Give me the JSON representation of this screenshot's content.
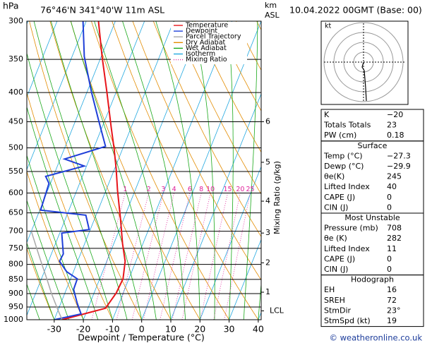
{
  "header": {
    "location": "76°46'N 341°40'W 11m ASL",
    "datetime": "10.04.2022 00GMT (Base: 00)",
    "footer": "© weatheronline.co.uk"
  },
  "chart_data": {
    "type": "skewt",
    "ylabel": "hPa",
    "xlabel": "Dewpoint / Temperature (°C)",
    "y2label": "Mixing Ratio (g/kg)",
    "xlim": [
      -39.4,
      41
    ],
    "xticks": [
      -30,
      -20,
      -10,
      0,
      10,
      20,
      30,
      40
    ],
    "ylim": [
      1000,
      300
    ],
    "yticks": [
      300,
      350,
      400,
      450,
      500,
      550,
      600,
      650,
      700,
      750,
      800,
      850,
      900,
      950,
      1000
    ],
    "log_y": true,
    "height_label": "km",
    "height_label2": "ASL",
    "height_km": [
      1,
      2,
      3,
      4,
      5,
      6
    ],
    "height_pressure": [
      895,
      795,
      705,
      620,
      530,
      450
    ],
    "lcl_label": "LCL",
    "lcl_pressure": 965,
    "series": [
      {
        "name": "Temperature",
        "color": "#e8141a",
        "pressure": [
          1000,
          955,
          898,
          848,
          790,
          736,
          666,
          594,
          545,
          501,
          460,
          399,
          346,
          300
        ],
        "values": [
          -27.3,
          -14,
          -12.4,
          -12,
          -13.7,
          -17,
          -21.1,
          -26,
          -29.4,
          -33,
          -36.9,
          -43.2,
          -49.7,
          -55.8
        ]
      },
      {
        "name": "Dewpoint",
        "color": "#1f3fd8",
        "pressure": [
          1000,
          977,
          937,
          885,
          848,
          824,
          790,
          767,
          705,
          695,
          656,
          643,
          577,
          561,
          538,
          523,
          497,
          447,
          399,
          346,
          300
        ],
        "values": [
          -29.9,
          -21.6,
          -24.3,
          -27.5,
          -27.7,
          -32.3,
          -36.2,
          -35.9,
          -39.3,
          -30.4,
          -33.5,
          -49.7,
          -50.5,
          -52.6,
          -40.8,
          -48.5,
          -36.2,
          -42.2,
          -48.5,
          -55.8,
          -61.1
        ]
      },
      {
        "name": "Parcel Trajectory",
        "color": "#a8a8a8",
        "pressure": [
          1000,
          965,
          900,
          850,
          800,
          750,
          700
        ],
        "values": [
          -27.3,
          -29.8,
          -34.5,
          -38,
          -41.8,
          -45.8,
          -50
        ]
      }
    ],
    "reference_lines": [
      {
        "name": "Dry Adiabat",
        "color": "#e38c00",
        "kind": "dry"
      },
      {
        "name": "Wet Adiabat",
        "color": "#19a819",
        "kind": "wet"
      },
      {
        "name": "Isotherm",
        "color": "#22a8e0",
        "kind": "isotherm"
      },
      {
        "name": "Mixing Ratio",
        "color": "#e0209a",
        "kind": "mixing"
      }
    ],
    "mixing_ratios": [
      1,
      2,
      3,
      4,
      6,
      8,
      10,
      15,
      20,
      25
    ]
  },
  "hodograph": {
    "unit": "kt"
  },
  "indices": {
    "top": [
      [
        "K",
        "−20"
      ],
      [
        "Totals Totals",
        "23"
      ],
      [
        "PW (cm)",
        "0.18"
      ]
    ],
    "sections": [
      {
        "title": "Surface",
        "rows": [
          [
            "Temp (°C)",
            "−27.3"
          ],
          [
            "Dewp (°C)",
            "−29.9"
          ],
          [
            "θe(K)",
            "245"
          ],
          [
            "Lifted Index",
            "40"
          ],
          [
            "CAPE (J)",
            "0"
          ],
          [
            "CIN (J)",
            "0"
          ]
        ]
      },
      {
        "title": "Most Unstable",
        "rows": [
          [
            "Pressure (mb)",
            "708"
          ],
          [
            "θe (K)",
            "282"
          ],
          [
            "Lifted Index",
            "11"
          ],
          [
            "CAPE (J)",
            "0"
          ],
          [
            "CIN (J)",
            "0"
          ]
        ]
      },
      {
        "title": "Hodograph",
        "rows": [
          [
            "EH",
            "16"
          ],
          [
            "SREH",
            "72"
          ],
          [
            "StmDir",
            "23°"
          ],
          [
            "StmSpd (kt)",
            "19"
          ]
        ]
      }
    ]
  }
}
